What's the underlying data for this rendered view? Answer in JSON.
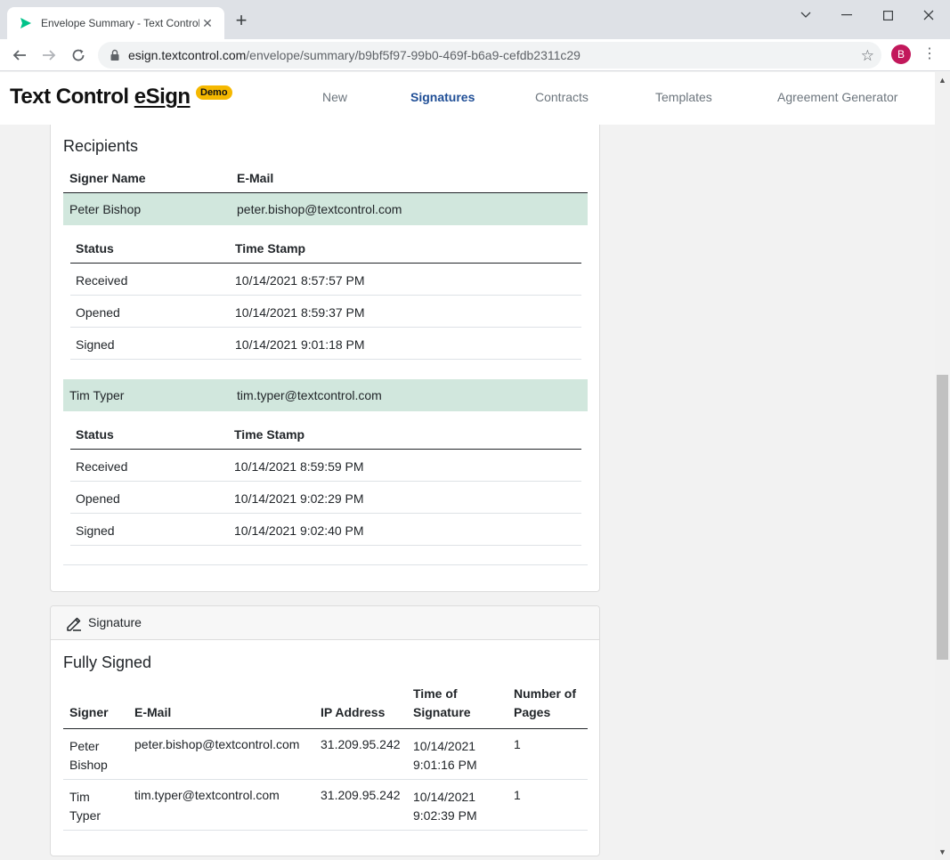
{
  "browser": {
    "tab_title": "Envelope Summary - Text Control",
    "url_host": "esign.textcontrol.com",
    "url_path": "/envelope/summary/b9bf5f97-99b0-469f-b6a9-cefdb2311c29",
    "profile_initial": "B",
    "accent": "#00c389",
    "profile_color": "#c2185b"
  },
  "header": {
    "brand_main": "Text Control ",
    "brand_esign": "eSign",
    "badge": "Demo",
    "nav": [
      "New",
      "Signatures",
      "Contracts",
      "Templates",
      "Agreement Generator"
    ],
    "active_nav": "Signatures"
  },
  "recipients": {
    "title": "Recipients",
    "col_name": "Signer Name",
    "col_email": "E-Mail",
    "status_col": "Status",
    "timestamp_col": "Time Stamp",
    "signers": [
      {
        "name": "Peter Bishop",
        "email": "peter.bishop@textcontrol.com",
        "events": [
          {
            "status": "Received",
            "time": "10/14/2021 8:57:57 PM"
          },
          {
            "status": "Opened",
            "time": "10/14/2021 8:59:37 PM"
          },
          {
            "status": "Signed",
            "time": "10/14/2021 9:01:18 PM"
          }
        ]
      },
      {
        "name": "Tim Typer",
        "email": "tim.typer@textcontrol.com",
        "events": [
          {
            "status": "Received",
            "time": "10/14/2021 8:59:59 PM"
          },
          {
            "status": "Opened",
            "time": "10/14/2021 9:02:29 PM"
          },
          {
            "status": "Signed",
            "time": "10/14/2021 9:02:40 PM"
          }
        ]
      }
    ]
  },
  "signature": {
    "header_label": "Signature",
    "title": "Fully Signed",
    "columns": {
      "signer": "Signer",
      "email": "E-Mail",
      "ip": "IP Address",
      "time_1": "Time of",
      "time_2": "Signature",
      "pages_1": "Number of",
      "pages_2": "Pages"
    },
    "rows": [
      {
        "first": "Peter",
        "last": "Bishop",
        "email": "peter.bishop@textcontrol.com",
        "ip": "31.209.95.242",
        "date": "10/14/2021",
        "time": "9:01:16 PM",
        "pages": "1"
      },
      {
        "first": "Tim",
        "last": "Typer",
        "email": "tim.typer@textcontrol.com",
        "ip": "31.209.95.242",
        "date": "10/14/2021",
        "time": "9:02:39 PM",
        "pages": "1"
      }
    ]
  }
}
